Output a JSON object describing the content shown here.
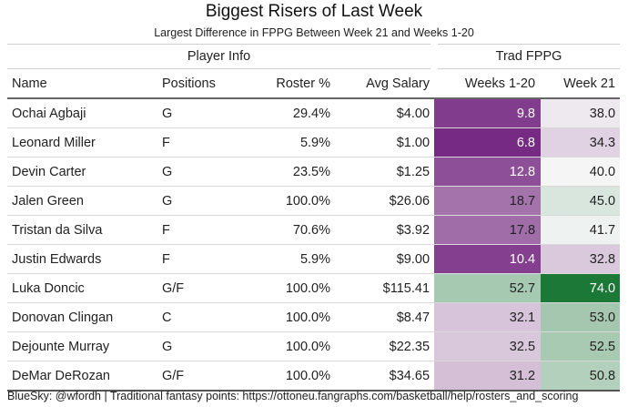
{
  "title": "Biggest Risers of Last Week",
  "subtitle": "Largest Difference in FPPG Between Week 21 and Weeks 1-20",
  "groups": {
    "player_info": "Player Info",
    "trad_fppg": "Trad FPPG"
  },
  "columns": {
    "name": "Name",
    "positions": "Positions",
    "roster": "Roster %",
    "salary": "Avg Salary",
    "weeks": "Weeks 1-20",
    "week21": "Week 21"
  },
  "rows": [
    {
      "name": "Ochai Agbaji",
      "positions": "G",
      "roster": "29.4%",
      "salary": "$4.00",
      "weeks": "9.8",
      "week21": "38.0"
    },
    {
      "name": "Leonard Miller",
      "positions": "F",
      "roster": "5.9%",
      "salary": "$1.00",
      "weeks": "6.8",
      "week21": "34.3"
    },
    {
      "name": "Devin Carter",
      "positions": "G",
      "roster": "23.5%",
      "salary": "$1.25",
      "weeks": "12.8",
      "week21": "40.0"
    },
    {
      "name": "Jalen Green",
      "positions": "G",
      "roster": "100.0%",
      "salary": "$26.06",
      "weeks": "18.7",
      "week21": "45.0"
    },
    {
      "name": "Tristan da Silva",
      "positions": "F",
      "roster": "70.6%",
      "salary": "$3.92",
      "weeks": "17.8",
      "week21": "41.7"
    },
    {
      "name": "Justin Edwards",
      "positions": "F",
      "roster": "5.9%",
      "salary": "$9.00",
      "weeks": "10.4",
      "week21": "32.8"
    },
    {
      "name": "Luka Doncic",
      "positions": "G/F",
      "roster": "100.0%",
      "salary": "$115.41",
      "weeks": "52.7",
      "week21": "74.0"
    },
    {
      "name": "Donovan Clingan",
      "positions": "C",
      "roster": "100.0%",
      "salary": "$8.47",
      "weeks": "32.1",
      "week21": "53.0"
    },
    {
      "name": "Dejounte Murray",
      "positions": "G",
      "roster": "100.0%",
      "salary": "$22.35",
      "weeks": "32.5",
      "week21": "52.5"
    },
    {
      "name": "DeMar DeRozan",
      "positions": "G/F",
      "roster": "100.0%",
      "salary": "$34.65",
      "weeks": "31.2",
      "week21": "50.8"
    }
  ],
  "color_scale": {
    "low": "#762a83",
    "mid": "#f7f7f7",
    "high": "#1b7837",
    "domain": [
      6.8,
      74.0
    ]
  },
  "footer": "BlueSky: @wfordh | Traditional fantasy points: https://ottoneu.fangraphs.com/basketball/help/rosters_and_scoring",
  "chart_data": {
    "type": "table",
    "title": "Biggest Risers of Last Week",
    "subtitle": "Largest Difference in FPPG Between Week 21 and Weeks 1-20",
    "columns": [
      "Name",
      "Positions",
      "Roster %",
      "Avg Salary",
      "Weeks 1-20",
      "Week 21"
    ],
    "series": [
      {
        "name": "Weeks 1-20",
        "values": [
          9.8,
          6.8,
          12.8,
          18.7,
          17.8,
          10.4,
          52.7,
          32.1,
          32.5,
          31.2
        ]
      },
      {
        "name": "Week 21",
        "values": [
          38.0,
          34.3,
          40.0,
          45.0,
          41.7,
          32.8,
          74.0,
          53.0,
          52.5,
          50.8
        ]
      }
    ]
  }
}
